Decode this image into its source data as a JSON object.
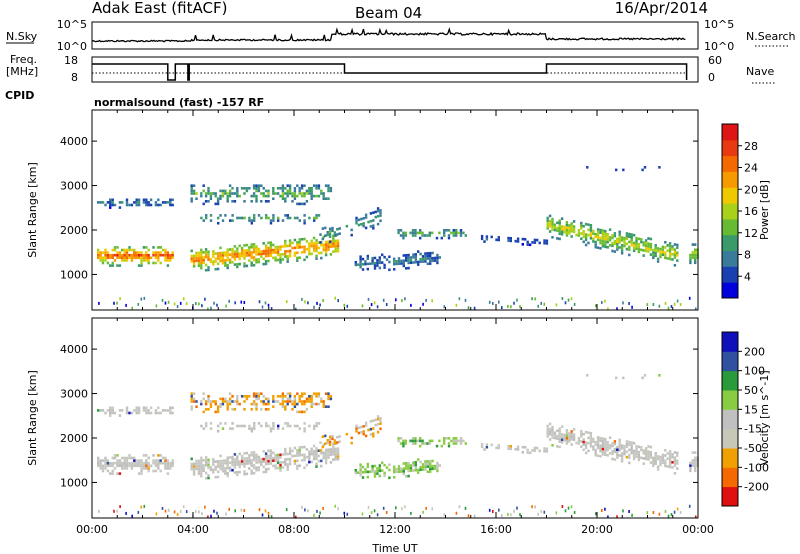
{
  "header": {
    "radar": "Adak East (fitACF)",
    "beam": "Beam 04",
    "date": "16/Apr/2014"
  },
  "top_panels": {
    "nsky_label": "N.Sky",
    "nsky_ticks": [
      "10^5",
      "10^0"
    ],
    "nsearch_label": "N.Search",
    "nsearch_ticks": [
      "10^5",
      "10^0"
    ],
    "freq_label_1": "Freq.",
    "freq_label_2": "[MHz]",
    "freq_ticks": [
      "18",
      "8"
    ],
    "nave_label": "Nave",
    "nave_ticks": [
      "60",
      "0"
    ],
    "cpid_label": "CPID",
    "cpid_text": "normalsound (fast) -157 RF"
  },
  "colors": {
    "power_scale": [
      "#0000dd",
      "#1840b0",
      "#3a7a9a",
      "#3a9a6a",
      "#66bb33",
      "#aad11a",
      "#f0c800",
      "#f79a00",
      "#f56a00",
      "#e83a10",
      "#dd1515"
    ],
    "velocity_scale": [
      "#e01010",
      "#f56a00",
      "#f0a000",
      "#c8c8b8",
      "#c0c0c0",
      "#88cc44",
      "#2a9a3a",
      "#3050a0",
      "#1010bb"
    ]
  },
  "chart_data": [
    {
      "type": "heatmap",
      "name": "Power",
      "ylabel": "Slant Range [km]",
      "ylim": [
        200,
        4700
      ],
      "yticks": [
        1000,
        2000,
        3000,
        4000
      ],
      "xlim": [
        0,
        24
      ],
      "colorbar_label": "Power [dB]",
      "colorbar_ticks": [
        "4",
        "8",
        "12",
        "16",
        "20",
        "24",
        "28"
      ],
      "colorbar_range": [
        0,
        30
      ]
    },
    {
      "type": "heatmap",
      "name": "Velocity",
      "xlabel": "Time UT",
      "ylabel": "Slant Range [km]",
      "ylim": [
        200,
        4700
      ],
      "yticks": [
        1000,
        2000,
        3000,
        4000
      ],
      "xlim": [
        0,
        24
      ],
      "xticks": [
        "00:00",
        "04:00",
        "08:00",
        "12:00",
        "16:00",
        "20:00",
        "00:00"
      ],
      "colorbar_label": "Velocity [m s^-1]",
      "colorbar_ticks": [
        "200",
        "100",
        "50",
        "15",
        "-15",
        "-50",
        "-100",
        "-200"
      ]
    }
  ]
}
